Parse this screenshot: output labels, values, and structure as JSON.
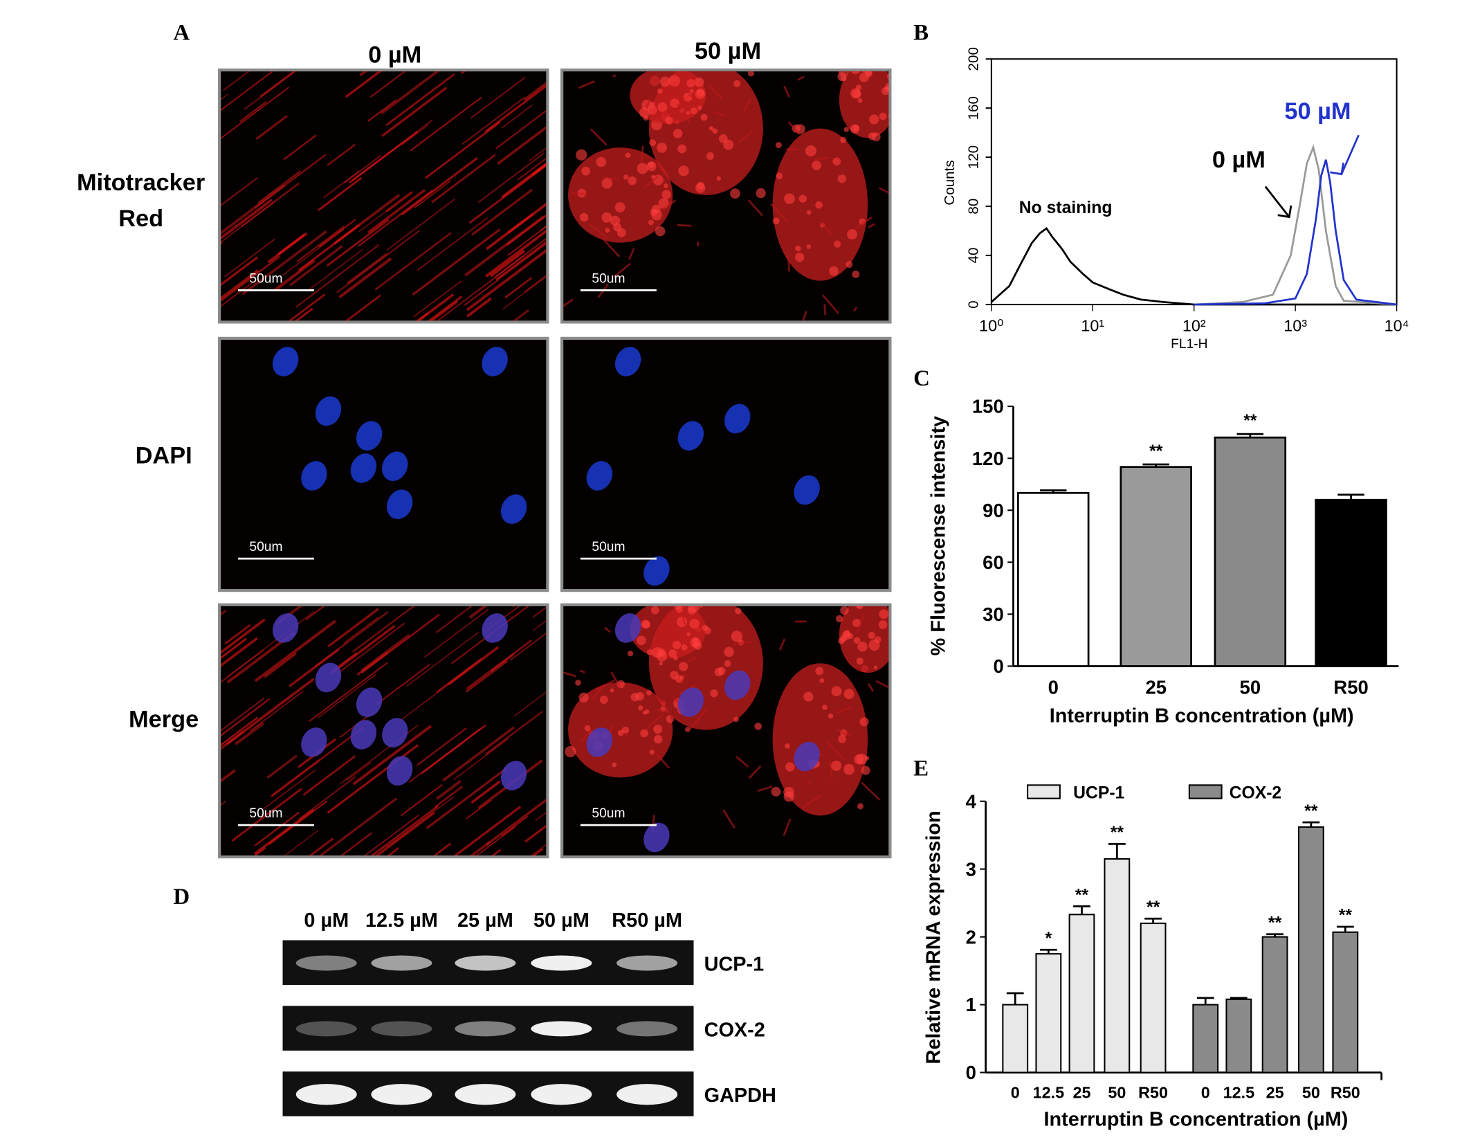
{
  "figure": {
    "panel_labels": [
      "A",
      "B",
      "C",
      "D",
      "E"
    ],
    "panel_a": {
      "columns": [
        "0 µM",
        "50 µM"
      ],
      "row_labels": [
        [
          "Mitotracker",
          "Red"
        ],
        [
          "DAPI"
        ],
        [
          "Merge"
        ]
      ],
      "scale_bar": "50um"
    },
    "panel_d": {
      "lanes": [
        "0 µM",
        "12.5 µM",
        "25 µM",
        "50 µM",
        "R50 µM"
      ],
      "genes": [
        "UCP-1",
        "COX-2",
        "GAPDH"
      ]
    }
  },
  "chart_data": [
    {
      "type": "line",
      "x_label": "FL1-H",
      "y_label": "Counts",
      "x_scale": "log",
      "xlim": [
        1,
        10000
      ],
      "xticks": [
        {
          "value": 1,
          "label": "10⁰"
        },
        {
          "value": 10,
          "label": "10¹"
        },
        {
          "value": 100,
          "label": "10²"
        },
        {
          "value": 1000,
          "label": "10³"
        },
        {
          "value": 10000,
          "label": "10⁴"
        }
      ],
      "ylim": [
        0,
        200
      ],
      "yticks": [
        0,
        40,
        80,
        120,
        160,
        200
      ],
      "series": [
        {
          "name": "No staining",
          "color": "#000000",
          "x": [
            1,
            1.5,
            2,
            2.5,
            3,
            3.5,
            4,
            5,
            6,
            8,
            10,
            15,
            20,
            30,
            50,
            100,
            1000,
            10000
          ],
          "values": [
            2,
            15,
            35,
            50,
            58,
            62,
            55,
            45,
            35,
            25,
            18,
            12,
            8,
            4,
            2,
            0,
            0,
            0
          ]
        },
        {
          "name": "0 µM",
          "color": "#999999",
          "x": [
            100,
            300,
            600,
            900,
            1100,
            1300,
            1500,
            1700,
            2000,
            2500,
            3000,
            10000
          ],
          "values": [
            0,
            2,
            8,
            40,
            80,
            115,
            128,
            110,
            60,
            15,
            3,
            0
          ]
        },
        {
          "name": "50 µM",
          "color": "#2233cc",
          "x": [
            100,
            500,
            1000,
            1300,
            1600,
            1800,
            2000,
            2200,
            2500,
            3000,
            4000,
            10000
          ],
          "values": [
            0,
            1,
            5,
            25,
            70,
            105,
            118,
            100,
            60,
            20,
            4,
            0
          ]
        }
      ]
    },
    {
      "type": "bar",
      "x_label": "Interruptin B concentration (µM)",
      "y_label": "% Fluorescense intensity",
      "categories": [
        "0",
        "25",
        "50",
        "R50"
      ],
      "values": [
        100,
        115,
        132,
        96
      ],
      "errors": [
        1.5,
        1.5,
        2,
        3
      ],
      "significance": [
        null,
        "**",
        "**",
        null
      ],
      "colors": [
        "#ffffff",
        "#9a9a9a",
        "#8a8a8a",
        "#000000"
      ],
      "ylim": [
        0,
        150
      ],
      "yticks": [
        0,
        30,
        60,
        90,
        120,
        150
      ]
    },
    {
      "type": "grouped_bar",
      "x_label": "Interruptin B concentration (µM)",
      "y_label": "Relative mRNA expression",
      "categories": [
        "0",
        "12.5",
        "25",
        "50",
        "R50"
      ],
      "ylim": [
        0,
        4
      ],
      "yticks": [
        0,
        1,
        2,
        3,
        4
      ],
      "series": [
        {
          "name": "UCP-1",
          "color": "#e8e8e8",
          "values": [
            1.0,
            1.75,
            2.33,
            3.15,
            2.2
          ],
          "errors": [
            0.17,
            0.06,
            0.12,
            0.22,
            0.07
          ],
          "significance": [
            null,
            "*",
            "**",
            "**",
            "**"
          ]
        },
        {
          "name": "COX-2",
          "color": "#8a8a8a",
          "values": [
            1.0,
            1.08,
            2.0,
            3.62,
            2.07
          ],
          "errors": [
            0.1,
            0.02,
            0.04,
            0.07,
            0.08
          ],
          "significance": [
            null,
            null,
            "**",
            "**",
            "**"
          ]
        }
      ]
    }
  ]
}
